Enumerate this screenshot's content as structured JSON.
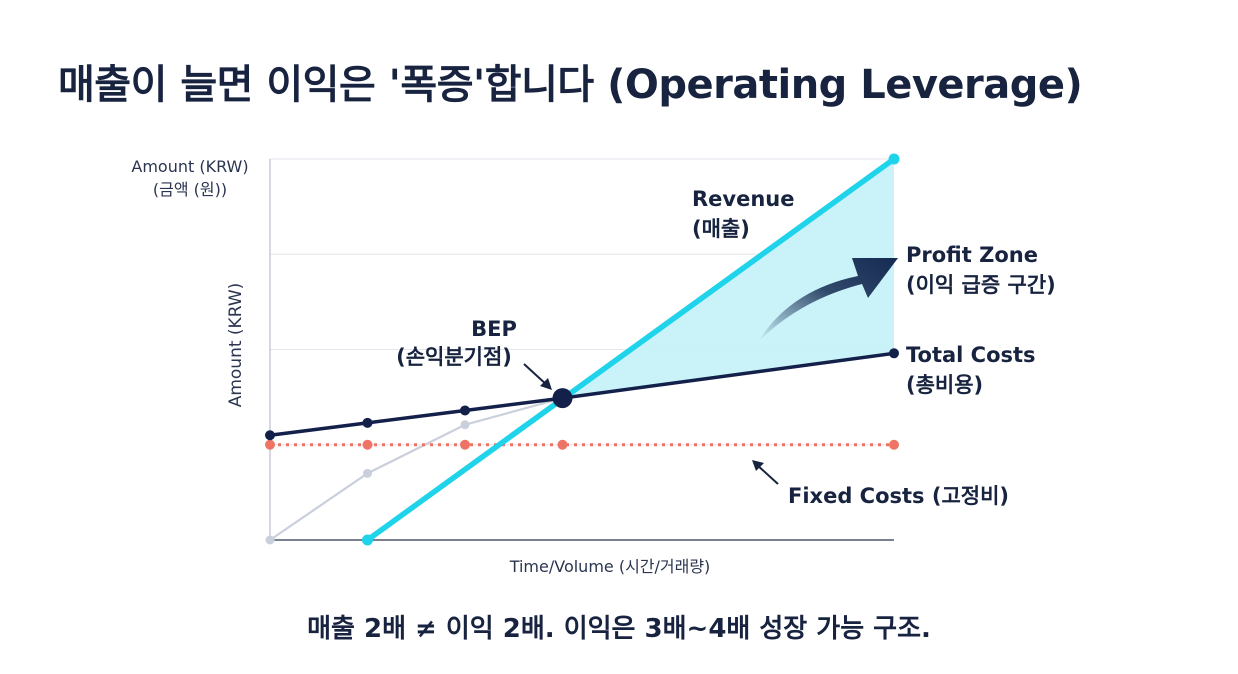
{
  "page": {
    "title": "매출이 늘면 이익은 '폭증'합니다 (Operating Leverage)",
    "subtitle": "매출 2배 ≠ 이익 2배. 이익은 3배~4배 성장 가능 구조."
  },
  "colors": {
    "revenue": "#1ed3ea",
    "total_costs": "#13204a",
    "fixed_costs": "#ee7466",
    "variable_guide": "#c9cfdb",
    "profit_fill": "#c4f2f8",
    "arrow_dark": "#152a52",
    "grid": "#e3e6ec"
  },
  "chart_data": {
    "type": "line",
    "title": "매출이 늘면 이익은 '폭증'합니다 (Operating Leverage)",
    "xlabel": "Time/Volume (시간/거래량)",
    "ylabel": "Amount (KRW)",
    "ylabel_top_line1": "Amount (KRW)",
    "ylabel_top_line2": "(금액 (원))",
    "xlim": [
      0,
      6.4
    ],
    "ylim": [
      0,
      4
    ],
    "grid": true,
    "series": [
      {
        "name_line1": "Revenue",
        "name_line2": "(매출)",
        "key": "revenue",
        "x": [
          1,
          6.4
        ],
        "y": [
          0,
          4
        ]
      },
      {
        "name_line1": "Total Costs",
        "name_line2": "(총비용)",
        "key": "total_costs",
        "x": [
          0,
          1,
          2,
          3,
          6.4
        ],
        "y": [
          1.1,
          1.23,
          1.36,
          1.49,
          1.96
        ]
      },
      {
        "name_line1": "Fixed Costs (고정비)",
        "key": "fixed_costs",
        "x": [
          0,
          1,
          2,
          3,
          6.4
        ],
        "y": [
          1.0,
          1.0,
          1.0,
          1.0,
          1.0
        ]
      },
      {
        "key": "variable_guide",
        "x": [
          0,
          1,
          2,
          3
        ],
        "y": [
          0,
          0.7,
          1.21,
          1.49
        ]
      }
    ],
    "annotations": {
      "bep_line1": "BEP",
      "bep_line2": "(손익분기점)",
      "bep_x": 3,
      "bep_y": 1.49,
      "profit_zone_line1": "Profit Zone",
      "profit_zone_line2": "(이익 급증 구간)"
    }
  }
}
